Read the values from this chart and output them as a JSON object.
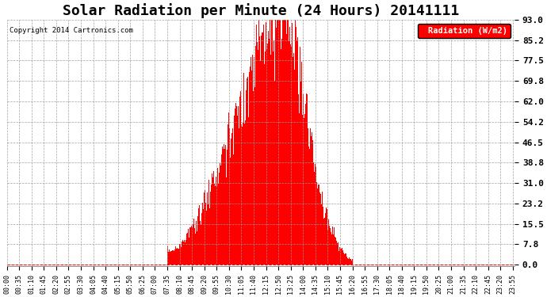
{
  "title": "Solar Radiation per Minute (24 Hours) 20141111",
  "copyright": "Copyright 2014 Cartronics.com",
  "legend_label": "Radiation (W/m2)",
  "yticks": [
    0.0,
    7.8,
    15.5,
    23.2,
    31.0,
    38.8,
    46.5,
    54.2,
    62.0,
    69.8,
    77.5,
    85.2,
    93.0
  ],
  "bar_color": "#FF0000",
  "zero_line_color": "#FF0000",
  "grid_color": "#999999",
  "background_color": "#FFFFFF",
  "title_fontsize": 13,
  "axis_fontsize": 6,
  "ylabel_fontsize": 8,
  "figsize": [
    6.9,
    3.75
  ],
  "dpi": 100,
  "legend_facecolor": "#FF0000",
  "legend_textcolor": "#FFFFFF",
  "sunrise_min": 455,
  "sunset_min": 980,
  "peak_min": 770,
  "peak_value": 93.0,
  "tick_interval": 35
}
